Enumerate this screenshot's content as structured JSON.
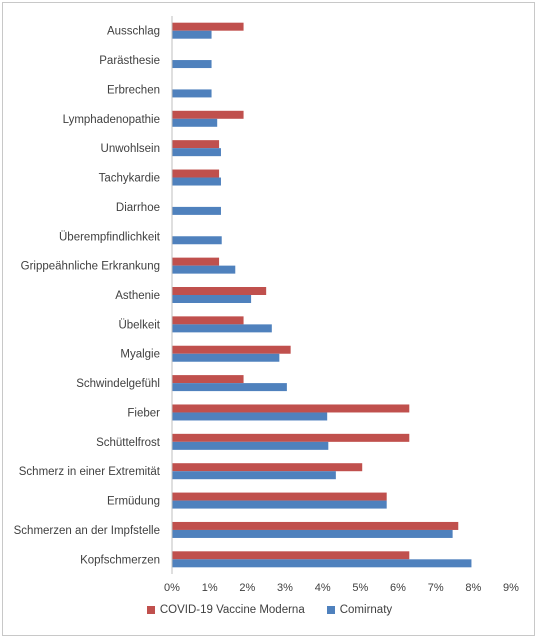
{
  "chart_data": {
    "type": "bar",
    "orientation": "horizontal",
    "categories": [
      "Ausschlag",
      "Parästhesie",
      "Erbrechen",
      "Lymphadenopathie",
      "Unwohlsein",
      "Tachykardie",
      "Diarrhoe",
      "Überempfindlichkeit",
      "Grippeähnliche Erkrankung",
      "Asthenie",
      "Übelkeit",
      "Myalgie",
      "Schwindelgefühl",
      "Fieber",
      "Schüttelfrost",
      "Schmerz in einer Extremität",
      "Ermüdung",
      "Schmerzen an der Impfstelle",
      "Kopfschmerzen"
    ],
    "series": [
      {
        "name": "COVID-19 Vaccine Moderna",
        "color": "#c0504d",
        "values": [
          1.9,
          null,
          null,
          1.9,
          1.25,
          1.25,
          null,
          null,
          1.25,
          2.5,
          1.9,
          3.15,
          1.9,
          6.3,
          6.3,
          5.05,
          5.7,
          7.6,
          6.3
        ]
      },
      {
        "name": "Comirnaty",
        "color": "#4f81bd",
        "values": [
          1.05,
          1.05,
          1.05,
          1.2,
          1.3,
          1.3,
          1.3,
          1.32,
          1.68,
          2.1,
          2.65,
          2.85,
          3.05,
          4.12,
          4.15,
          4.35,
          5.7,
          7.45,
          7.95
        ]
      }
    ],
    "xlim": [
      0,
      9
    ],
    "x_ticks": [
      "0%",
      "1%",
      "2%",
      "3%",
      "4%",
      "5%",
      "6%",
      "7%",
      "8%",
      "9%"
    ],
    "grid": false,
    "legend": "bottom"
  }
}
